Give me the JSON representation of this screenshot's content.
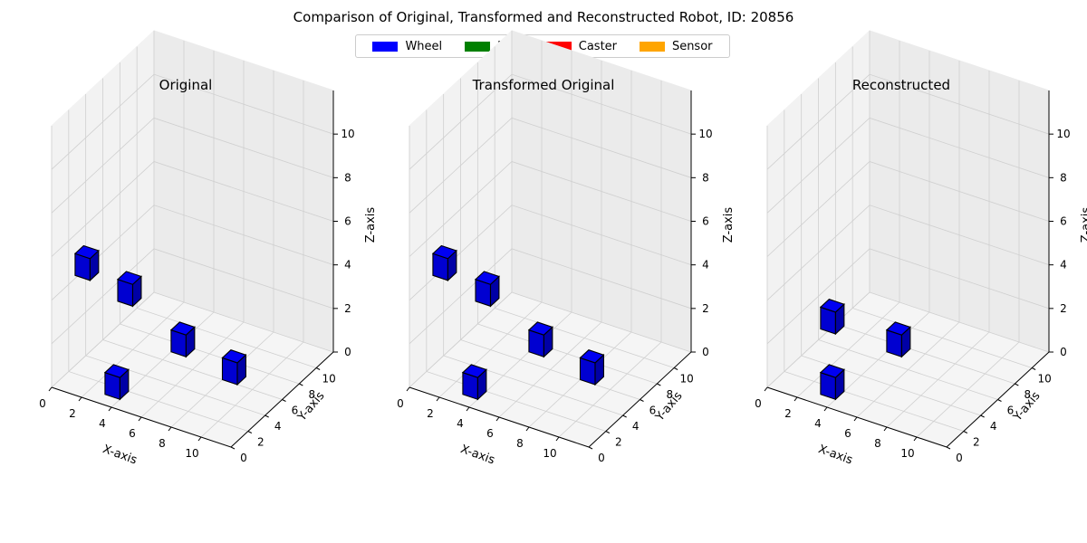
{
  "figure": {
    "suptitle": "Comparison of Original, Transformed and Reconstructed Robot, ID: 20856"
  },
  "legend": [
    {
      "label": "Wheel",
      "color": "#0000ff"
    },
    {
      "label": "Joint",
      "color": "#008000"
    },
    {
      "label": "Caster",
      "color": "#ff0000"
    },
    {
      "label": "Sensor",
      "color": "#ffa500"
    }
  ],
  "chart_data": [
    {
      "type": "3d-voxel",
      "title": "Original",
      "xlabel": "X-axis",
      "ylabel": "Y-axis",
      "zlabel": "Z-axis",
      "xticks": [
        "0",
        "2",
        "4",
        "6",
        "8",
        "10"
      ],
      "yticks": [
        "0",
        "2",
        "4",
        "6",
        "8",
        "10"
      ],
      "zticks": [
        "0",
        "2",
        "4",
        "6",
        "8",
        "10"
      ],
      "xlim": [
        0,
        12
      ],
      "ylim": [
        0,
        12
      ],
      "zlim": [
        0,
        12
      ],
      "voxels": [
        {
          "x": 1,
          "y": 1,
          "z": 5,
          "part": "Wheel"
        },
        {
          "x": 3,
          "y": 1,
          "z": 0,
          "part": "Wheel"
        },
        {
          "x": 1,
          "y": 6,
          "z": 2,
          "part": "Wheel"
        },
        {
          "x": 4,
          "y": 7,
          "z": 0,
          "part": "Wheel"
        },
        {
          "x": 8,
          "y": 6,
          "z": 0,
          "part": "Wheel"
        }
      ]
    },
    {
      "type": "3d-voxel",
      "title": "Transformed Original",
      "xlabel": "X-axis",
      "ylabel": "Y-axis",
      "zlabel": "Z-axis",
      "xticks": [
        "0",
        "2",
        "4",
        "6",
        "8",
        "10"
      ],
      "yticks": [
        "0",
        "2",
        "4",
        "6",
        "8",
        "10"
      ],
      "zticks": [
        "0",
        "2",
        "4",
        "6",
        "8",
        "10"
      ],
      "xlim": [
        0,
        12
      ],
      "ylim": [
        0,
        12
      ],
      "zlim": [
        0,
        12
      ],
      "voxels": [
        {
          "x": 1,
          "y": 1,
          "z": 5,
          "part": "Wheel"
        },
        {
          "x": 3,
          "y": 1,
          "z": 0,
          "part": "Wheel"
        },
        {
          "x": 1,
          "y": 6,
          "z": 2,
          "part": "Wheel"
        },
        {
          "x": 4,
          "y": 7,
          "z": 0,
          "part": "Wheel"
        },
        {
          "x": 8,
          "y": 6,
          "z": 0,
          "part": "Wheel"
        }
      ]
    },
    {
      "type": "3d-voxel",
      "title": "Reconstructed",
      "xlabel": "X-axis",
      "ylabel": "Y-axis",
      "zlabel": "Z-axis",
      "xticks": [
        "0",
        "2",
        "4",
        "6",
        "8",
        "10"
      ],
      "yticks": [
        "0",
        "2",
        "4",
        "6",
        "8",
        "10"
      ],
      "zticks": [
        "0",
        "2",
        "4",
        "6",
        "8",
        "10"
      ],
      "xlim": [
        0,
        12
      ],
      "ylim": [
        0,
        12
      ],
      "zlim": [
        0,
        12
      ],
      "voxels": [
        {
          "x": 3,
          "y": 1,
          "z": 3,
          "part": "Wheel"
        },
        {
          "x": 3,
          "y": 1,
          "z": 0,
          "part": "Wheel"
        },
        {
          "x": 4,
          "y": 7,
          "z": 0,
          "part": "Wheel"
        }
      ]
    }
  ]
}
